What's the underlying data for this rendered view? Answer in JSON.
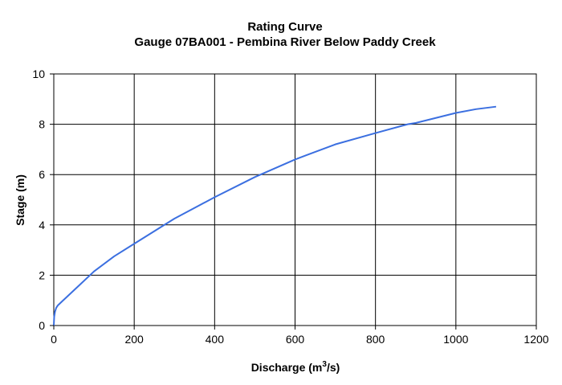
{
  "chart_data": {
    "type": "line",
    "title": "Rating Curve",
    "subtitle": "Gauge 07BA001 - Pembina River Below Paddy Creek",
    "xlabel_main": "Discharge (m",
    "xlabel_sup": "3",
    "xlabel_tail": "/s)",
    "ylabel": "Stage (m)",
    "xlim": [
      0,
      1200
    ],
    "ylim": [
      0,
      10
    ],
    "x_ticks": [
      0,
      200,
      400,
      600,
      800,
      1000,
      1200
    ],
    "y_ticks": [
      0,
      2,
      4,
      6,
      8,
      10
    ],
    "x_tick_labels": [
      "0",
      "200",
      "400",
      "600",
      "800",
      "1000",
      "1200"
    ],
    "y_tick_labels": [
      "0",
      "2",
      "4",
      "6",
      "8",
      "10"
    ],
    "grid": true,
    "series": [
      {
        "color": "#3b6fe0",
        "x": [
          0,
          1,
          3,
          6,
          10,
          20,
          40,
          60,
          100,
          150,
          200,
          270,
          300,
          400,
          500,
          600,
          700,
          800,
          880,
          900,
          1000,
          1050,
          1100
        ],
        "y": [
          0.0,
          0.35,
          0.55,
          0.7,
          0.8,
          0.95,
          1.25,
          1.55,
          2.15,
          2.75,
          3.25,
          3.95,
          4.25,
          5.1,
          5.9,
          6.6,
          7.2,
          7.65,
          8.0,
          8.05,
          8.45,
          8.6,
          8.7
        ]
      }
    ]
  }
}
